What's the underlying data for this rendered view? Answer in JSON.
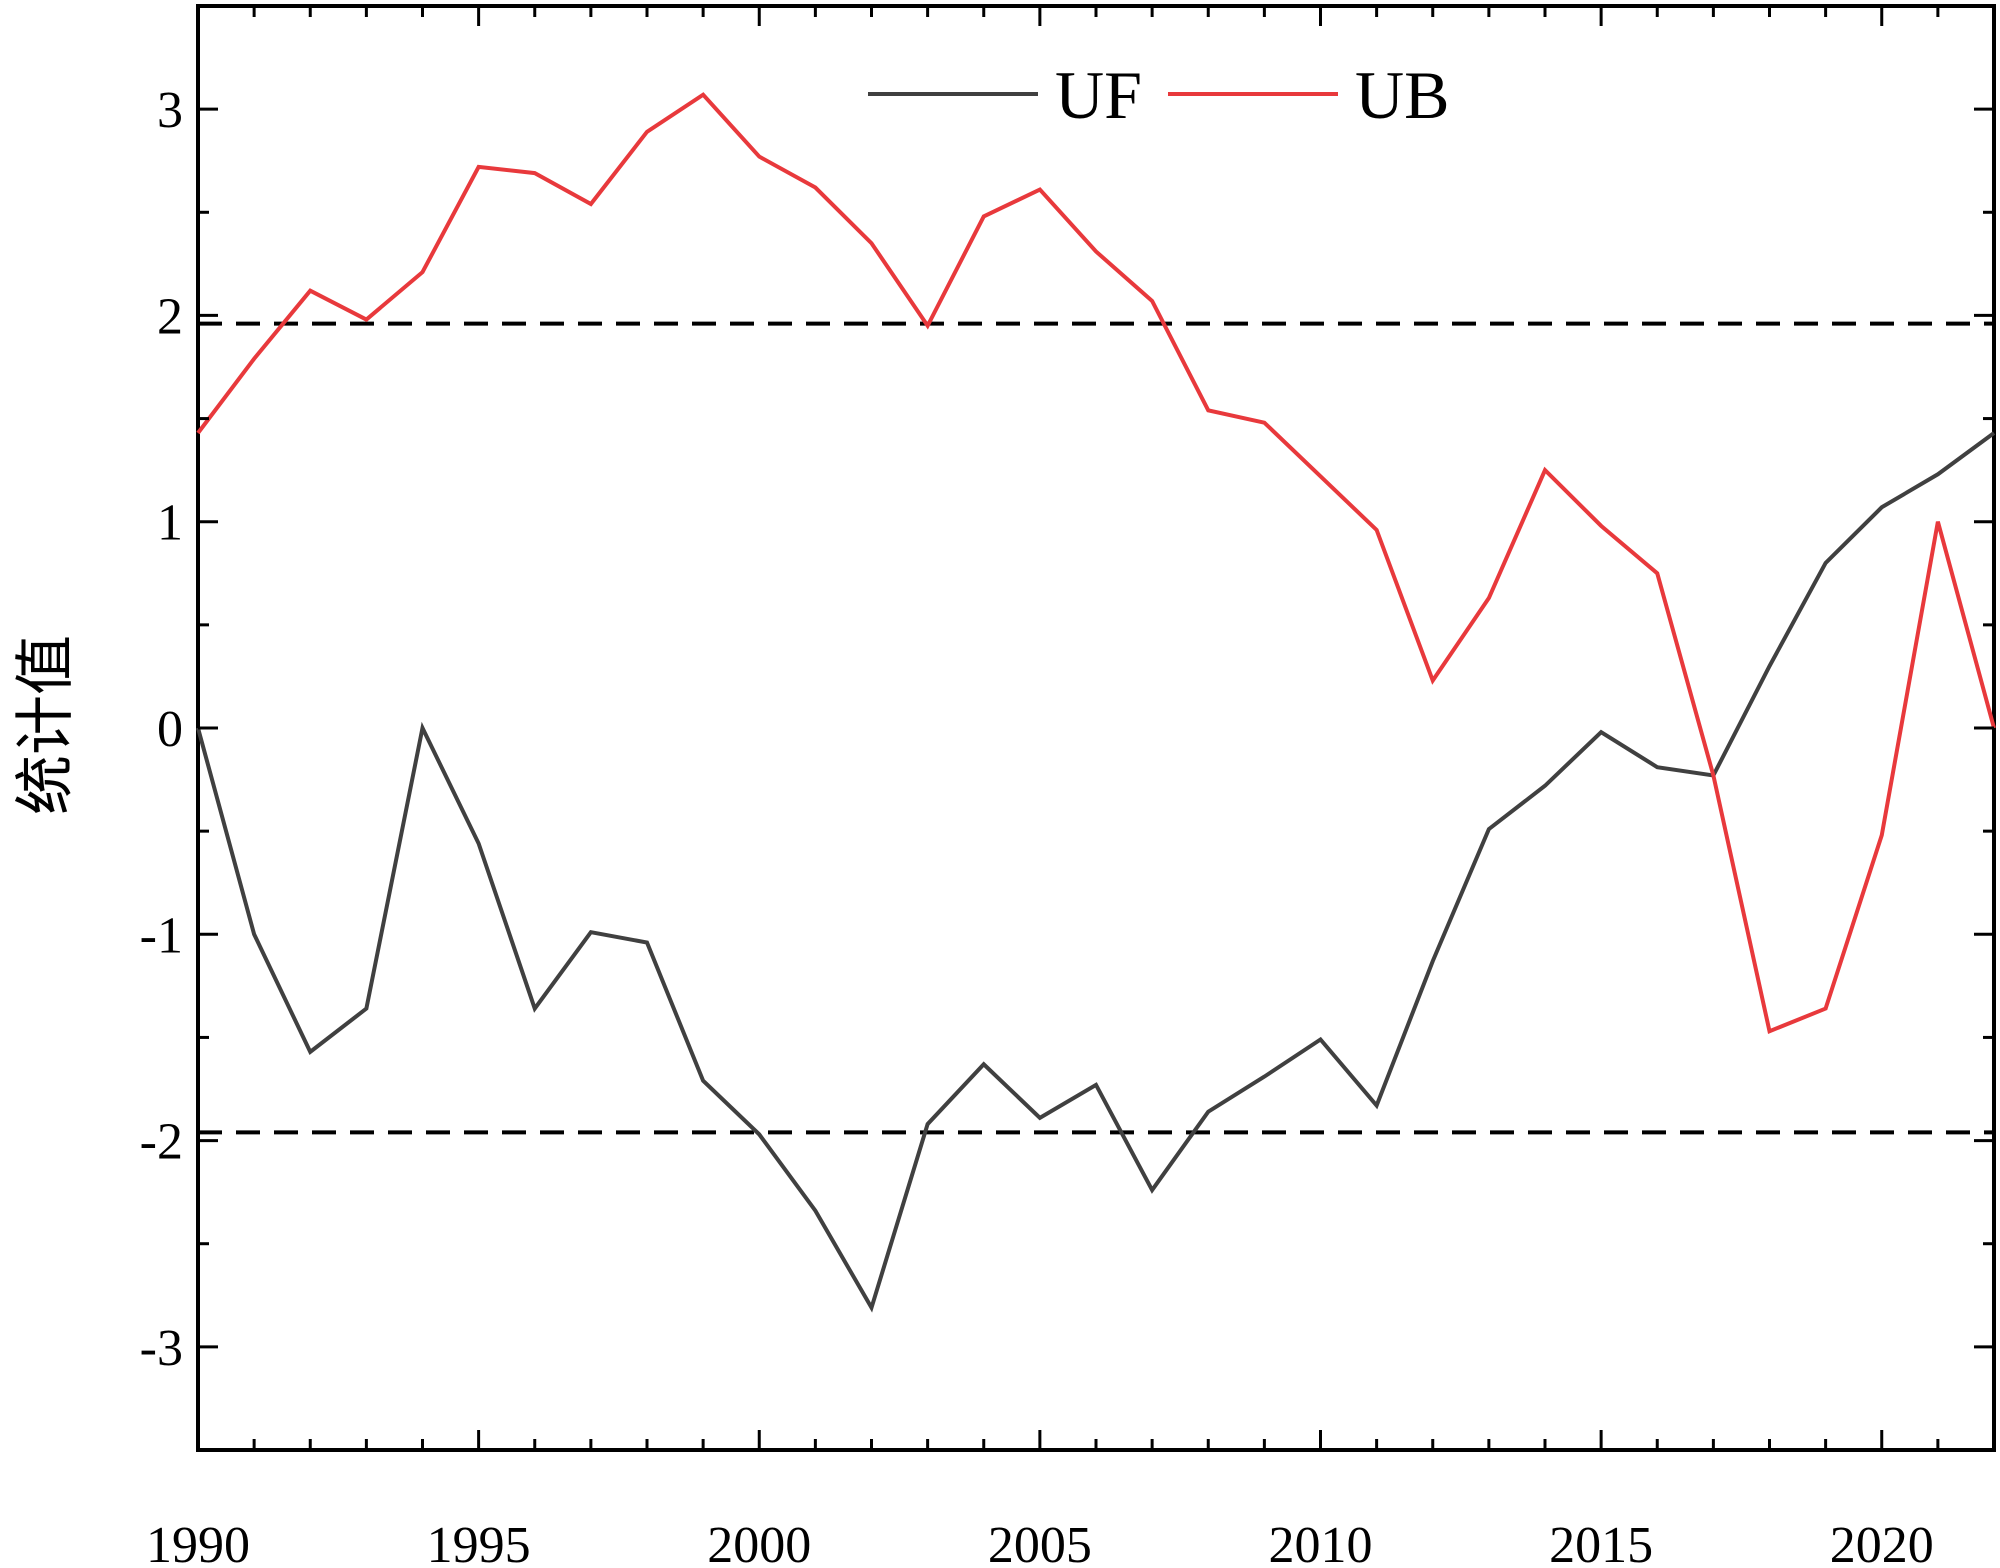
{
  "chart_data": {
    "type": "line",
    "title": "",
    "xlabel": "",
    "ylabel": "统计值",
    "xlim": [
      1990,
      2022
    ],
    "ylim": [
      -3.5,
      3.5
    ],
    "x_ticks": [
      1990,
      1995,
      2000,
      2005,
      2010,
      2015,
      2020
    ],
    "y_ticks": [
      -3,
      -2,
      -1,
      0,
      1,
      2,
      3
    ],
    "legend_position": "top-center",
    "grid": false,
    "x": [
      1990,
      1991,
      1992,
      1993,
      1994,
      1995,
      1996,
      1997,
      1998,
      1999,
      2000,
      2001,
      2002,
      2003,
      2004,
      2005,
      2006,
      2007,
      2008,
      2009,
      2010,
      2011,
      2012,
      2013,
      2014,
      2015,
      2016,
      2017,
      2018,
      2019,
      2020,
      2021,
      2022
    ],
    "series": [
      {
        "name": "UF",
        "color": "#404040",
        "values": [
          0,
          -1.0,
          -1.57,
          -1.36,
          0.0,
          -0.56,
          -1.36,
          -0.99,
          -1.04,
          -1.71,
          -1.97,
          -2.34,
          -2.81,
          -1.92,
          -1.63,
          -1.89,
          -1.73,
          -2.24,
          -1.86,
          -1.69,
          -1.51,
          -1.83,
          -1.13,
          -0.49,
          -0.28,
          -0.02,
          -0.19,
          -0.23,
          0.3,
          0.8,
          1.07,
          1.23,
          1.43
        ]
      },
      {
        "name": "UB",
        "color": "#e8393c",
        "values": [
          1.43,
          1.79,
          2.12,
          1.98,
          2.21,
          2.72,
          2.69,
          2.54,
          2.89,
          3.07,
          2.77,
          2.62,
          2.35,
          1.95,
          2.48,
          2.61,
          2.31,
          2.07,
          1.54,
          1.48,
          1.22,
          0.96,
          0.23,
          0.63,
          1.25,
          0.98,
          0.75,
          -0.23,
          -1.47,
          -1.36,
          -0.52,
          1.0,
          0.0
        ]
      }
    ],
    "reference_lines": [
      {
        "y": 1.96,
        "style": "dashed",
        "color": "#000000"
      },
      {
        "y": -1.96,
        "style": "dashed",
        "color": "#000000"
      }
    ]
  }
}
